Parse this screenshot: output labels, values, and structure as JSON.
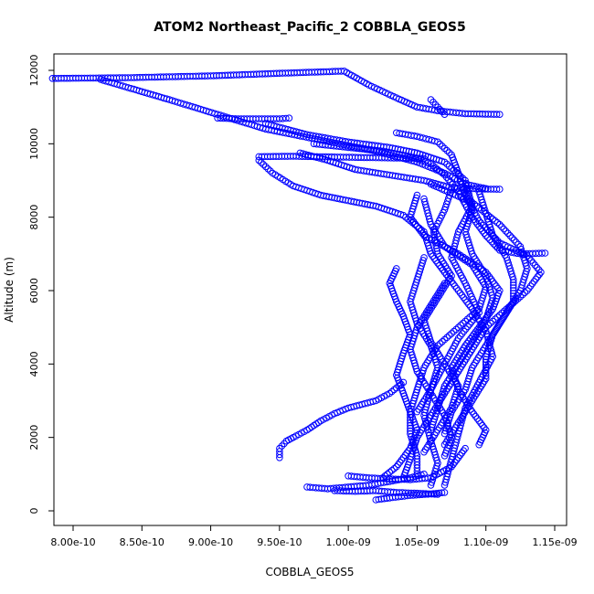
{
  "chart_data": {
    "type": "scatter",
    "title": "ATOM2 Northeast_Pacific_2 COBBLA_GEOS5",
    "xlabel": "COBBLA_GEOS5",
    "ylabel": "Altitude (m)",
    "xlim": [
      7.8e-10,
      1.15e-09
    ],
    "ylim": [
      0,
      12000
    ],
    "x_ticks": [
      8e-10,
      8.5e-10,
      9e-10,
      9.5e-10,
      1e-09,
      1.05e-09,
      1.1e-09,
      1.15e-09
    ],
    "x_tick_labels": [
      "8.00e-10",
      "8.50e-10",
      "9.00e-10",
      "9.50e-10",
      "1.00e-09",
      "1.05e-09",
      "1.10e-09",
      "1.15e-09"
    ],
    "y_ticks": [
      0,
      2000,
      4000,
      6000,
      8000,
      10000,
      12000
    ],
    "y_tick_labels": [
      "0",
      "2000",
      "4000",
      "6000",
      "8000",
      "10000",
      "12000"
    ],
    "grid": false,
    "marker": "open-circle",
    "color": "#0000ff",
    "paths": [
      [
        [
          7.85e-10,
          11780
        ],
        [
          8.4e-10,
          11800
        ],
        [
          9e-10,
          11850
        ],
        [
          9.5e-10,
          11920
        ],
        [
          9.97e-10,
          11980
        ],
        [
          1.015e-09,
          11600
        ],
        [
          1.035e-09,
          11250
        ],
        [
          1.05e-09,
          11000
        ],
        [
          1.065e-09,
          10900
        ],
        [
          1.085e-09,
          10820
        ],
        [
          1.11e-09,
          10800
        ]
      ],
      [
        [
          8.2e-10,
          11750
        ],
        [
          8.7e-10,
          11200
        ],
        [
          9.05e-10,
          10800
        ],
        [
          9.4e-10,
          10400
        ],
        [
          9.8e-10,
          10100
        ],
        [
          1.02e-09,
          9800
        ],
        [
          1.05e-09,
          9500
        ],
        [
          1.07e-09,
          9200
        ],
        [
          1.085e-09,
          8900
        ],
        [
          1.1e-09,
          8780
        ]
      ],
      [
        [
          9.05e-10,
          10700
        ],
        [
          9.2e-10,
          10680
        ],
        [
          9.5e-10,
          10680
        ],
        [
          9.57e-10,
          10700
        ]
      ],
      [
        [
          9.4e-10,
          10550
        ],
        [
          9.7e-10,
          10250
        ],
        [
          1e-09,
          10050
        ],
        [
          1.03e-09,
          9900
        ],
        [
          1.05e-09,
          9750
        ],
        [
          1.07e-09,
          9500
        ],
        [
          1.085e-09,
          9000
        ],
        [
          1.09e-09,
          8300
        ],
        [
          1.08e-09,
          7600
        ],
        [
          1.075e-09,
          6900
        ],
        [
          1.085e-09,
          6200
        ],
        [
          1.095e-09,
          5400
        ],
        [
          1.08e-09,
          4700
        ],
        [
          1.07e-09,
          4000
        ],
        [
          1.06e-09,
          3300
        ],
        [
          1.055e-09,
          2600
        ],
        [
          1.06e-09,
          1900
        ],
        [
          1.065e-09,
          1300
        ],
        [
          1.06e-09,
          700
        ]
      ],
      [
        [
          9.35e-10,
          9650
        ],
        [
          9.6e-10,
          9660
        ],
        [
          9.9e-10,
          9640
        ],
        [
          1.02e-09,
          9620
        ],
        [
          1.055e-09,
          9600
        ]
      ],
      [
        [
          9.35e-10,
          9550
        ],
        [
          9.45e-10,
          9200
        ],
        [
          9.6e-10,
          8850
        ],
        [
          9.8e-10,
          8600
        ],
        [
          1e-09,
          8450
        ],
        [
          1.02e-09,
          8300
        ],
        [
          1.04e-09,
          8050
        ],
        [
          1.055e-09,
          7600
        ],
        [
          1.06e-09,
          7000
        ],
        [
          1.07e-09,
          6500
        ],
        [
          1.08e-09,
          6000
        ],
        [
          1.09e-09,
          5500
        ],
        [
          1.1e-09,
          4900
        ],
        [
          1.105e-09,
          4200
        ],
        [
          1.095e-09,
          3500
        ],
        [
          1.085e-09,
          2800
        ],
        [
          1.08e-09,
          2100
        ],
        [
          1.075e-09,
          1400
        ],
        [
          1.07e-09,
          700
        ]
      ],
      [
        [
          9.65e-10,
          9750
        ],
        [
          9.85e-10,
          9550
        ],
        [
          1.005e-09,
          9300
        ],
        [
          1.03e-09,
          9150
        ],
        [
          1.055e-09,
          9000
        ],
        [
          1.075e-09,
          8800
        ],
        [
          1.095e-09,
          8770
        ],
        [
          1.11e-09,
          8760
        ]
      ],
      [
        [
          9.75e-10,
          10000
        ],
        [
          1e-09,
          9900
        ],
        [
          1.025e-09,
          9800
        ],
        [
          1.045e-09,
          9650
        ],
        [
          1.06e-09,
          9450
        ],
        [
          1.07e-09,
          9150
        ],
        [
          1.08e-09,
          8700
        ],
        [
          1.09e-09,
          8000
        ],
        [
          1.1e-09,
          7500
        ],
        [
          1.11e-09,
          7100
        ],
        [
          1.125e-09,
          7000
        ],
        [
          1.143e-09,
          7020
        ]
      ],
      [
        [
          1.035e-09,
          10300
        ],
        [
          1.05e-09,
          10200
        ],
        [
          1.065e-09,
          10050
        ],
        [
          1.075e-09,
          9700
        ],
        [
          1.08e-09,
          9200
        ],
        [
          1.085e-09,
          8600
        ],
        [
          1.095e-09,
          7900
        ],
        [
          1.11e-09,
          7300
        ],
        [
          1.13e-09,
          6950
        ],
        [
          1.14e-09,
          6500
        ],
        [
          1.13e-09,
          6000
        ],
        [
          1.115e-09,
          5500
        ],
        [
          1.1e-09,
          5000
        ],
        [
          1.09e-09,
          4400
        ],
        [
          1.08e-09,
          3800
        ],
        [
          1.07e-09,
          3200
        ],
        [
          1.06e-09,
          2600
        ],
        [
          1.05e-09,
          2000
        ],
        [
          1.045e-09,
          1400
        ],
        [
          1.04e-09,
          900
        ]
      ],
      [
        [
          1.06e-09,
          11200
        ],
        [
          1.065e-09,
          11000
        ],
        [
          1.07e-09,
          10800
        ]
      ],
      [
        [
          1.075e-09,
          8750
        ],
        [
          1.07e-09,
          8200
        ],
        [
          1.062e-09,
          7600
        ],
        [
          1.065e-09,
          7000
        ],
        [
          1.075e-09,
          6400
        ],
        [
          1.065e-09,
          5800
        ],
        [
          1.055e-09,
          5200
        ],
        [
          1.06e-09,
          4600
        ],
        [
          1.07e-09,
          4000
        ],
        [
          1.08e-09,
          3400
        ],
        [
          1.075e-09,
          2800
        ],
        [
          1.065e-09,
          2200
        ],
        [
          1.055e-09,
          1600
        ]
      ],
      [
        [
          1.05e-09,
          8600
        ],
        [
          1.045e-09,
          8000
        ],
        [
          1.055e-09,
          7500
        ],
        [
          1.08e-09,
          7000
        ],
        [
          1.1e-09,
          6500
        ],
        [
          1.11e-09,
          6000
        ],
        [
          1.105e-09,
          5500
        ],
        [
          1.095e-09,
          5000
        ],
        [
          1.085e-09,
          4500
        ],
        [
          1.075e-09,
          3900
        ],
        [
          1.08e-09,
          3300
        ],
        [
          1.09e-09,
          2700
        ],
        [
          1.1e-09,
          2200
        ],
        [
          1.095e-09,
          1800
        ]
      ],
      [
        [
          1.095e-09,
          8700
        ],
        [
          1.1e-09,
          8100
        ],
        [
          1.105e-09,
          7500
        ],
        [
          1.115e-09,
          6900
        ],
        [
          1.12e-09,
          6300
        ],
        [
          1.12e-09,
          5700
        ],
        [
          1.11e-09,
          5100
        ],
        [
          1.1e-09,
          4500
        ],
        [
          1.09e-09,
          3900
        ],
        [
          1.085e-09,
          3300
        ],
        [
          1.075e-09,
          2700
        ],
        [
          1.07e-09,
          2100
        ]
      ],
      [
        [
          1.055e-09,
          8500
        ],
        [
          1.06e-09,
          7800
        ],
        [
          1.07e-09,
          7200
        ],
        [
          1.09e-09,
          6700
        ],
        [
          1.1e-09,
          6100
        ],
        [
          1.095e-09,
          5500
        ],
        [
          1.08e-09,
          5000
        ],
        [
          1.065e-09,
          4500
        ],
        [
          1.055e-09,
          3900
        ],
        [
          1.05e-09,
          3300
        ],
        [
          1.045e-09,
          2700
        ],
        [
          1.045e-09,
          2100
        ],
        [
          1.05e-09,
          1500
        ],
        [
          1.05e-09,
          1000
        ]
      ],
      [
        [
          1.06e-09,
          8900
        ],
        [
          1.09e-09,
          8400
        ],
        [
          1.11e-09,
          7800
        ],
        [
          1.125e-09,
          7200
        ],
        [
          1.13e-09,
          6600
        ],
        [
          1.125e-09,
          6000
        ],
        [
          1.115e-09,
          5400
        ],
        [
          1.105e-09,
          4800
        ],
        [
          1.1e-09,
          4200
        ],
        [
          1.1e-09,
          3600
        ],
        [
          1.09e-09,
          3000
        ],
        [
          1.08e-09,
          2400
        ],
        [
          1.07e-09,
          1800
        ]
      ],
      [
        [
          1.07e-09,
          6200
        ],
        [
          1.06e-09,
          5600
        ],
        [
          1.05e-09,
          5000
        ],
        [
          1.045e-09,
          4400
        ],
        [
          1.05e-09,
          3800
        ],
        [
          1.06e-09,
          3200
        ],
        [
          1.07e-09,
          2600
        ],
        [
          1.075e-09,
          2000
        ],
        [
          1.07e-09,
          1500
        ]
      ],
      [
        [
          1.055e-09,
          6900
        ],
        [
          1.05e-09,
          6300
        ],
        [
          1.045e-09,
          5700
        ],
        [
          1.05e-09,
          5100
        ],
        [
          1.06e-09,
          4500
        ],
        [
          1.065e-09,
          3900
        ],
        [
          1.06e-09,
          3300
        ],
        [
          1.05e-09,
          2700
        ]
      ],
      [
        [
          1.085e-09,
          8800
        ],
        [
          1.09e-09,
          8200
        ],
        [
          1.085e-09,
          7600
        ],
        [
          1.09e-09,
          7000
        ],
        [
          1.1e-09,
          6400
        ],
        [
          1.105e-09,
          5800
        ],
        [
          1.1e-09,
          5200
        ],
        [
          1.09e-09,
          4600
        ],
        [
          1.08e-09,
          4000
        ],
        [
          1.07e-09,
          3400
        ],
        [
          1.065e-09,
          2800
        ],
        [
          1.06e-09,
          2200
        ]
      ],
      [
        [
          1.035e-09,
          6600
        ],
        [
          1.03e-09,
          6200
        ],
        [
          1.035e-09,
          5700
        ],
        [
          1.04e-09,
          5300
        ],
        [
          1.045e-09,
          4800
        ],
        [
          1.04e-09,
          4300
        ],
        [
          1.035e-09,
          3700
        ],
        [
          1.04e-09,
          3200
        ],
        [
          1.045e-09,
          2700
        ],
        [
          1.05e-09,
          2200
        ],
        [
          1.045e-09,
          1700
        ],
        [
          1.035e-09,
          1200
        ],
        [
          1.025e-09,
          900
        ]
      ],
      [
        [
          9.5e-10,
          1450
        ],
        [
          9.5e-10,
          1700
        ],
        [
          9.55e-10,
          1900
        ],
        [
          9.6e-10,
          2000
        ],
        [
          9.7e-10,
          2200
        ],
        [
          9.8e-10,
          2450
        ],
        [
          9.9e-10,
          2650
        ],
        [
          1e-09,
          2800
        ],
        [
          1.01e-09,
          2900
        ],
        [
          1.02e-09,
          3000
        ],
        [
          1.03e-09,
          3200
        ],
        [
          1.04e-09,
          3500
        ]
      ],
      [
        [
          9.7e-10,
          650
        ],
        [
          9.85e-10,
          600
        ],
        [
          1e-09,
          650
        ],
        [
          1.015e-09,
          700
        ],
        [
          1.03e-09,
          800
        ],
        [
          1.045e-09,
          900
        ],
        [
          1.055e-09,
          1000
        ]
      ],
      [
        [
          9.9e-10,
          550
        ],
        [
          1.005e-09,
          530
        ],
        [
          1.02e-09,
          550
        ],
        [
          1.035e-09,
          500
        ],
        [
          1.05e-09,
          480
        ],
        [
          1.065e-09,
          450
        ]
      ],
      [
        [
          1e-09,
          950
        ],
        [
          1.015e-09,
          900
        ],
        [
          1.03e-09,
          870
        ],
        [
          1.045e-09,
          850
        ],
        [
          1.06e-09,
          900
        ],
        [
          1.075e-09,
          1200
        ],
        [
          1.085e-09,
          1700
        ]
      ],
      [
        [
          1.02e-09,
          300
        ],
        [
          1.03e-09,
          350
        ],
        [
          1.045e-09,
          420
        ],
        [
          1.06e-09,
          460
        ],
        [
          1.07e-09,
          500
        ]
      ]
    ]
  }
}
